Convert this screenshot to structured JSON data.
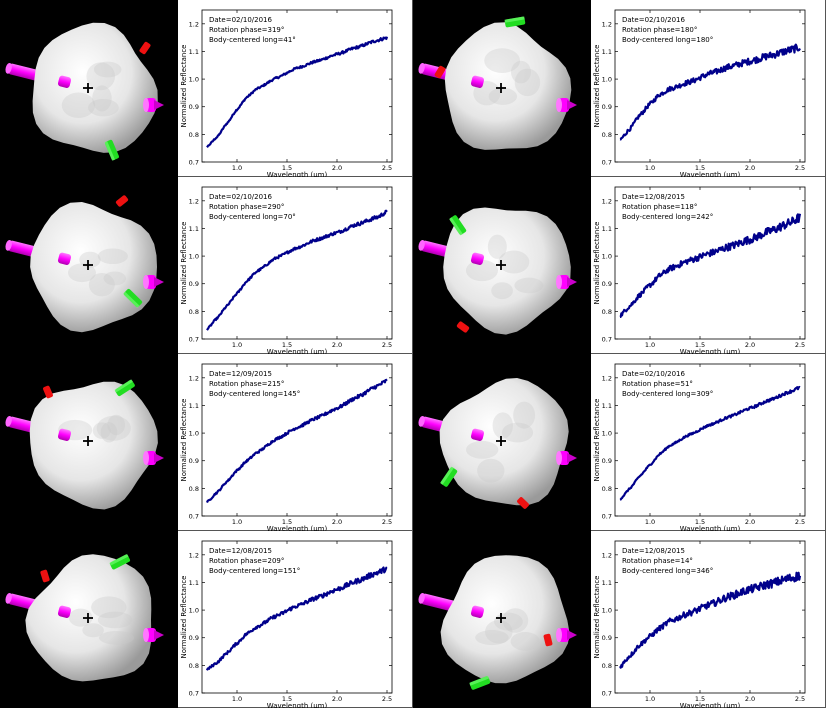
{
  "axes_common": {
    "xlabel": "Wavelength (μm)",
    "ylabel": "Normalized Reflectance",
    "xlim": [
      0.65,
      2.55
    ],
    "ylim": [
      0.7,
      1.25
    ],
    "xticks": [
      "1.0",
      "1.5",
      "2.0",
      "2.5"
    ],
    "yticks": [
      "0.7",
      "0.8",
      "0.9",
      "1.0",
      "1.1",
      "1.2"
    ]
  },
  "chart_data": [
    {
      "type": "line",
      "date": "Date=02/10/2016",
      "phase": "Rotation phase=319°",
      "long": "Body-centered long=41°",
      "x": [
        0.7,
        0.8,
        0.9,
        1.0,
        1.1,
        1.2,
        1.4,
        1.6,
        1.8,
        2.0,
        2.2,
        2.4,
        2.5
      ],
      "y": [
        0.755,
        0.79,
        0.84,
        0.89,
        0.935,
        0.965,
        1.005,
        1.04,
        1.065,
        1.09,
        1.115,
        1.14,
        1.15
      ],
      "noise": 0.004,
      "color": "#00008b"
    },
    {
      "type": "line",
      "date": "Date=02/10/2016",
      "phase": "Rotation phase=180°",
      "long": "Body-centered long=180°",
      "x": [
        0.7,
        0.8,
        0.9,
        1.0,
        1.1,
        1.2,
        1.4,
        1.6,
        1.8,
        2.0,
        2.2,
        2.4,
        2.5
      ],
      "y": [
        0.78,
        0.82,
        0.87,
        0.91,
        0.945,
        0.965,
        0.99,
        1.02,
        1.045,
        1.065,
        1.085,
        1.105,
        1.115
      ],
      "noise": 0.01,
      "color": "#00008b"
    },
    {
      "type": "line",
      "date": "Date=02/10/2016",
      "phase": "Rotation phase=290°",
      "long": "Body-centered long=70°",
      "x": [
        0.7,
        0.8,
        0.9,
        1.0,
        1.1,
        1.2,
        1.4,
        1.6,
        1.8,
        2.0,
        2.2,
        2.4,
        2.5
      ],
      "y": [
        0.735,
        0.775,
        0.82,
        0.865,
        0.91,
        0.945,
        0.995,
        1.03,
        1.06,
        1.085,
        1.115,
        1.14,
        1.16
      ],
      "noise": 0.005,
      "color": "#00008b"
    },
    {
      "type": "line",
      "date": "Date=12/08/2015",
      "phase": "Rotation phase=118°",
      "long": "Body-centered long=242°",
      "x": [
        0.7,
        0.8,
        0.9,
        1.0,
        1.1,
        1.2,
        1.4,
        1.6,
        1.8,
        2.0,
        2.2,
        2.4,
        2.5
      ],
      "y": [
        0.785,
        0.82,
        0.86,
        0.895,
        0.93,
        0.955,
        0.985,
        1.01,
        1.035,
        1.06,
        1.09,
        1.12,
        1.14
      ],
      "noise": 0.012,
      "color": "#00008b"
    },
    {
      "type": "line",
      "date": "Date=12/09/2015",
      "phase": "Rotation phase=215°",
      "long": "Body-centered long=145°",
      "x": [
        0.7,
        0.8,
        0.9,
        1.0,
        1.1,
        1.2,
        1.4,
        1.6,
        1.8,
        2.0,
        2.2,
        2.4,
        2.5
      ],
      "y": [
        0.75,
        0.785,
        0.825,
        0.865,
        0.9,
        0.93,
        0.98,
        1.02,
        1.055,
        1.09,
        1.13,
        1.17,
        1.19
      ],
      "noise": 0.005,
      "color": "#00008b"
    },
    {
      "type": "line",
      "date": "Date=02/10/2016",
      "phase": "Rotation phase=51°",
      "long": "Body-centered long=309°",
      "x": [
        0.7,
        0.8,
        0.9,
        1.0,
        1.1,
        1.2,
        1.4,
        1.6,
        1.8,
        2.0,
        2.2,
        2.4,
        2.5
      ],
      "y": [
        0.76,
        0.8,
        0.845,
        0.885,
        0.925,
        0.955,
        0.995,
        1.03,
        1.06,
        1.09,
        1.12,
        1.15,
        1.165
      ],
      "noise": 0.004,
      "color": "#00008b"
    },
    {
      "type": "line",
      "date": "Date=12/08/2015",
      "phase": "Rotation phase=209°",
      "long": "Body-centered long=151°",
      "x": [
        0.7,
        0.8,
        0.9,
        1.0,
        1.1,
        1.2,
        1.4,
        1.6,
        1.8,
        2.0,
        2.2,
        2.4,
        2.5
      ],
      "y": [
        0.785,
        0.81,
        0.845,
        0.88,
        0.915,
        0.94,
        0.98,
        1.015,
        1.045,
        1.075,
        1.105,
        1.135,
        1.15
      ],
      "noise": 0.007,
      "color": "#00008b"
    },
    {
      "type": "line",
      "date": "Date=12/08/2015",
      "phase": "Rotation phase=14°",
      "long": "Body-centered long=346°",
      "x": [
        0.7,
        0.8,
        0.9,
        1.0,
        1.1,
        1.2,
        1.4,
        1.6,
        1.8,
        2.0,
        2.2,
        2.4,
        2.5
      ],
      "y": [
        0.795,
        0.835,
        0.875,
        0.905,
        0.935,
        0.96,
        0.99,
        1.02,
        1.05,
        1.075,
        1.095,
        1.115,
        1.125
      ],
      "noise": 0.012,
      "color": "#00008b"
    }
  ],
  "renders": [
    {
      "red": [
        145,
        48,
        0.6
      ],
      "green": [
        112,
        150,
        -0.4
      ],
      "cross": [
        88,
        88
      ]
    },
    {
      "red": [
        440,
        72,
        -2.6
      ],
      "green": [
        515,
        22,
        1.4
      ],
      "cross": [
        501,
        88
      ]
    },
    {
      "red": [
        122,
        201,
        0.9
      ],
      "green": [
        133,
        298,
        -0.8
      ],
      "cross": [
        88,
        265
      ]
    },
    {
      "red": [
        463,
        327,
        2.2
      ],
      "green": [
        458,
        225,
        -0.6
      ],
      "cross": [
        501,
        265
      ]
    },
    {
      "red": [
        48,
        392,
        -0.4
      ],
      "green": [
        125,
        388,
        1.0
      ],
      "cross": [
        88,
        441
      ]
    },
    {
      "red": [
        523,
        503,
        -0.8
      ],
      "green": [
        449,
        477,
        0.6
      ],
      "cross": [
        501,
        441
      ]
    },
    {
      "red": [
        45,
        576,
        -0.3
      ],
      "green": [
        120,
        562,
        1.1
      ],
      "cross": [
        88,
        618
      ]
    },
    {
      "red": [
        548,
        640,
        2.9
      ],
      "green": [
        480,
        683,
        1.2
      ],
      "cross": [
        501,
        618
      ]
    }
  ],
  "colors": {
    "magenta": "#ff00ff",
    "green": "#22dd22",
    "red": "#ee1111",
    "line": "#00008b"
  }
}
